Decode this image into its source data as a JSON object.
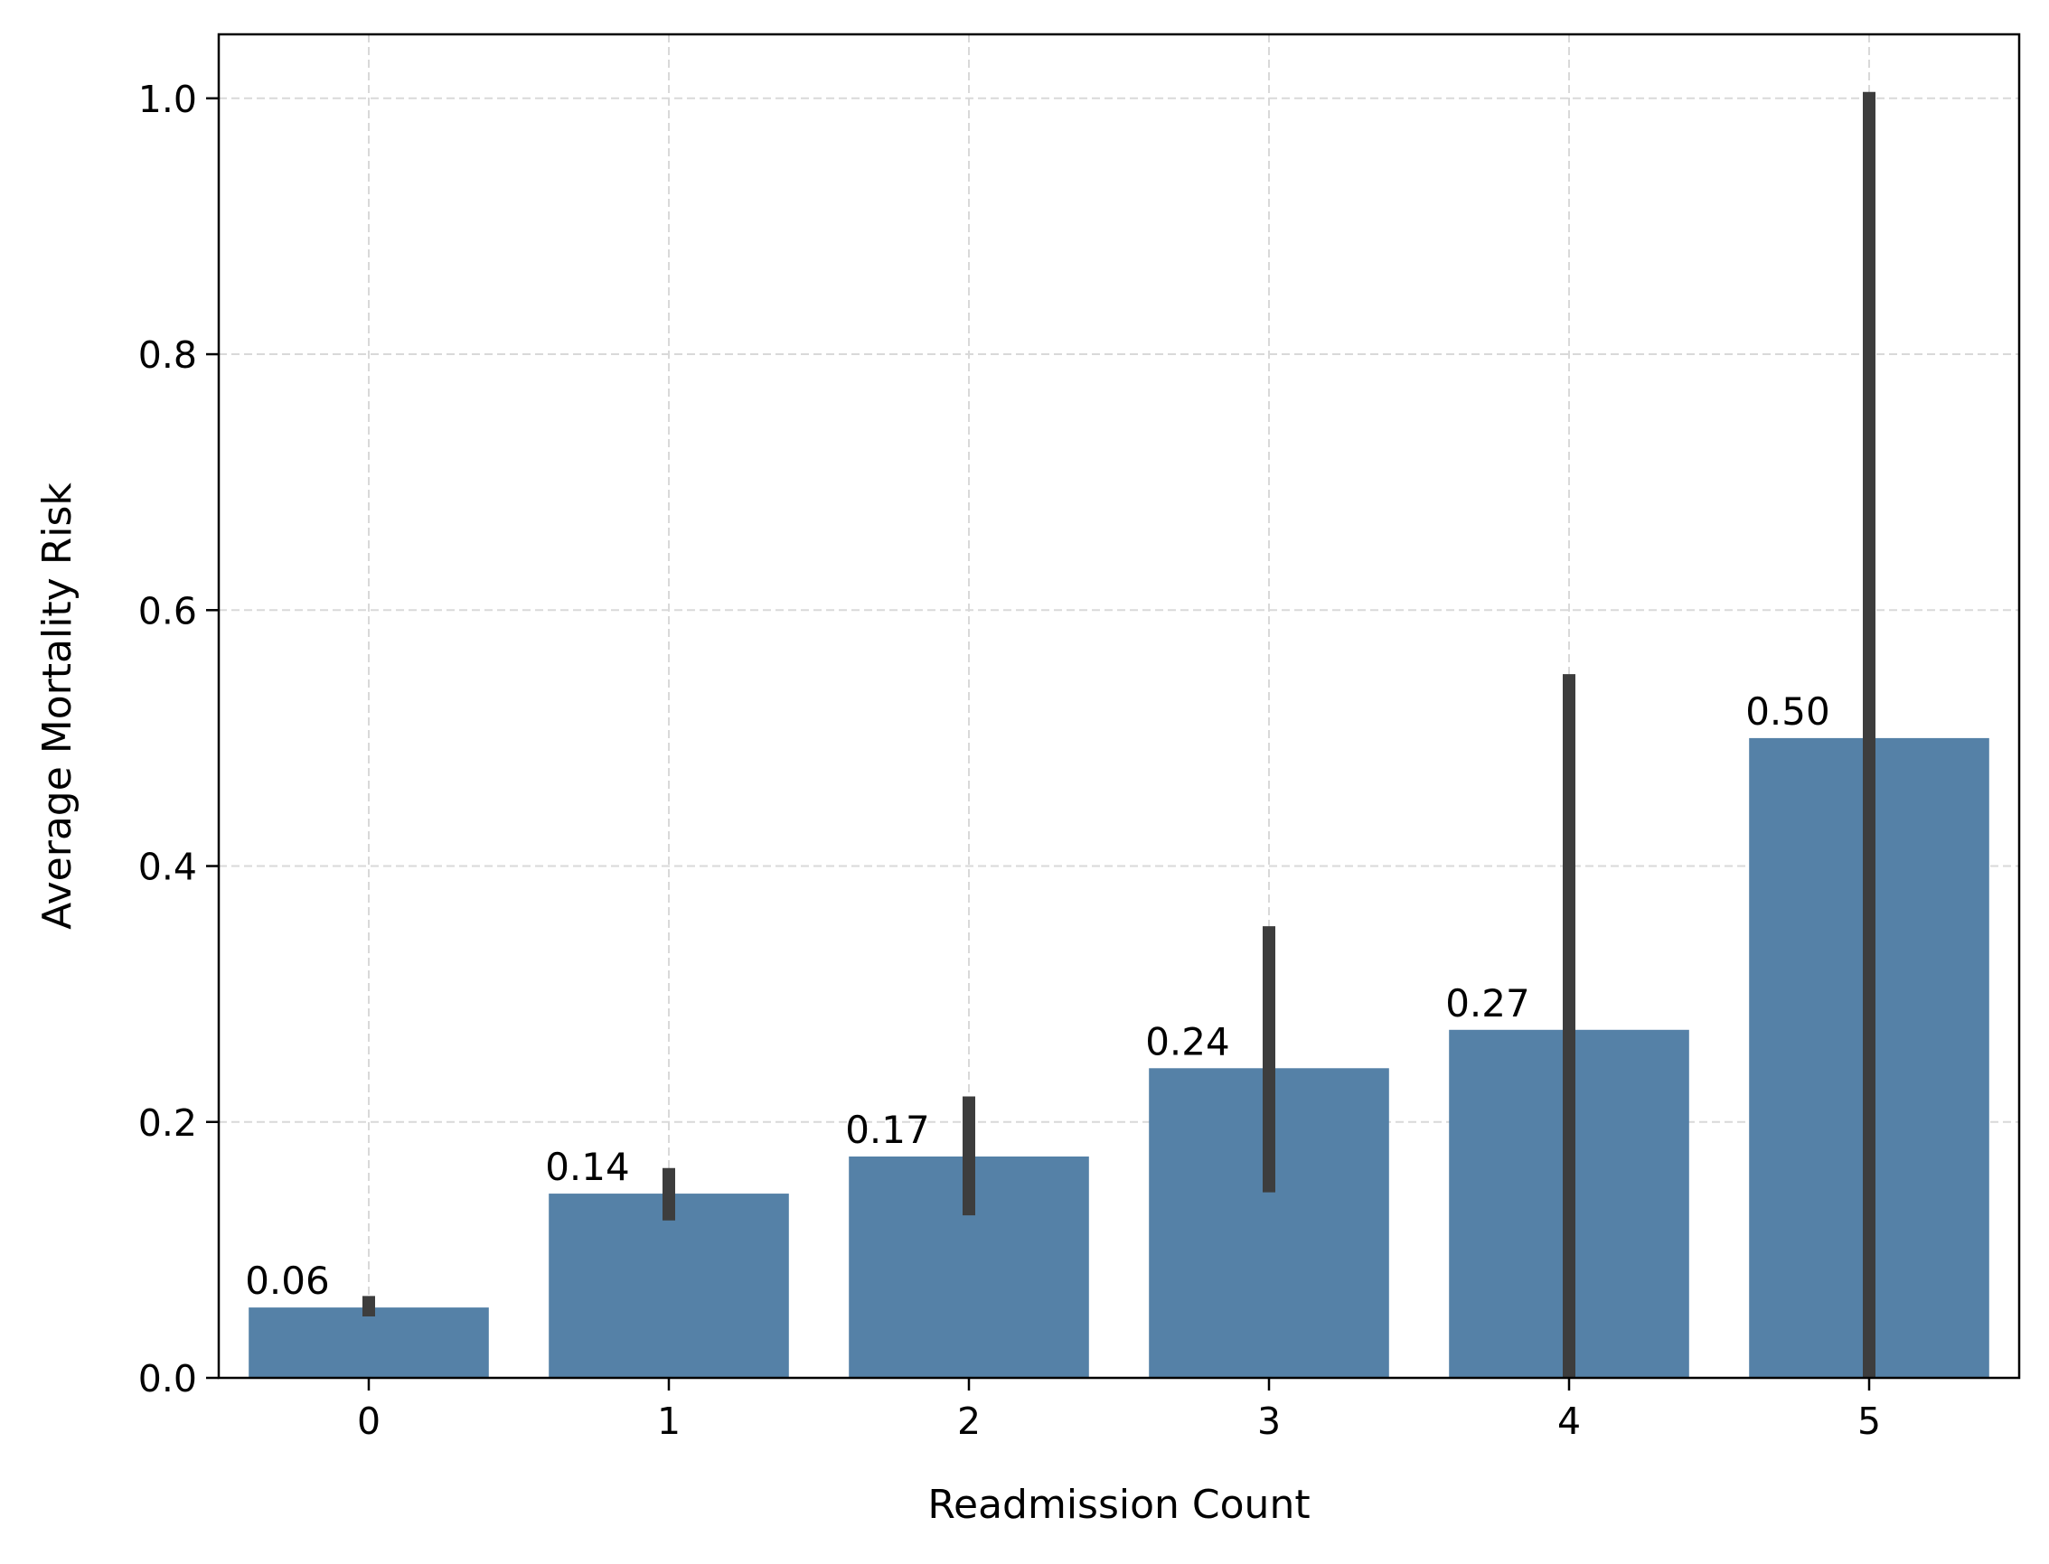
{
  "chart_data": {
    "type": "bar",
    "title": "",
    "xlabel": "Readmission Count",
    "ylabel": "Average Mortality Risk",
    "categories": [
      "0",
      "1",
      "2",
      "3",
      "4",
      "5"
    ],
    "values": [
      0.055,
      0.144,
      0.173,
      0.242,
      0.272,
      0.5
    ],
    "data_labels": [
      "0.06",
      "0.14",
      "0.17",
      "0.24",
      "0.27",
      "0.50"
    ],
    "error_bars": [
      [
        0.048,
        0.064
      ],
      [
        0.123,
        0.164
      ],
      [
        0.127,
        0.22
      ],
      [
        0.145,
        0.353
      ],
      [
        0.0,
        0.55
      ],
      [
        0.0,
        1.005
      ]
    ],
    "ylim": [
      0,
      1.05
    ],
    "yticks": [
      0.0,
      0.2,
      0.4,
      0.6,
      0.8,
      1.0
    ],
    "ytick_labels": [
      "0.0",
      "0.2",
      "0.4",
      "0.6",
      "0.8",
      "1.0"
    ],
    "grid": true,
    "legend": null,
    "colors": {
      "bar": "#5581a7",
      "error_bar": "#3d3d3d",
      "grid": "#d9d9d9",
      "axis": "#000000"
    }
  }
}
